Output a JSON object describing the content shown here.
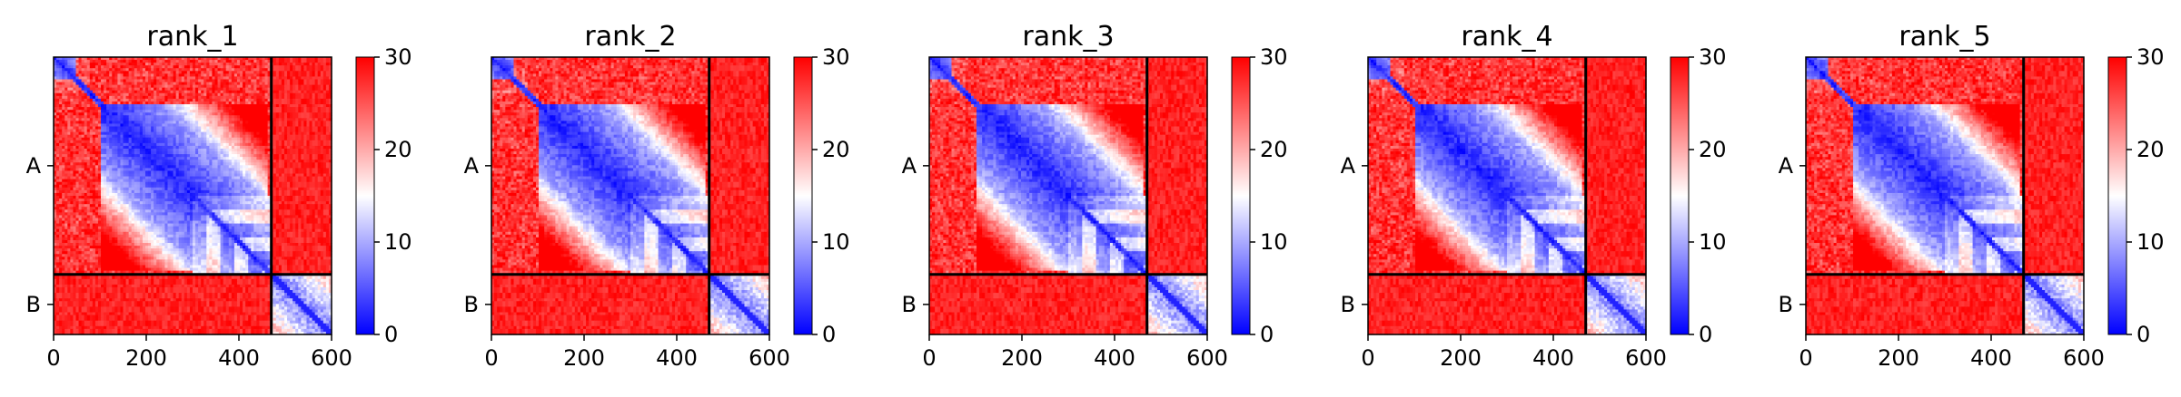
{
  "chart_data": [
    {
      "type": "heatmap",
      "title": "rank_1",
      "boundary": 470
    },
    {
      "type": "heatmap",
      "title": "rank_2",
      "boundary": 470
    },
    {
      "type": "heatmap",
      "title": "rank_3",
      "boundary": 470
    },
    {
      "type": "heatmap",
      "title": "rank_4",
      "boundary": 470
    },
    {
      "type": "heatmap",
      "title": "rank_5",
      "boundary": 470
    }
  ],
  "shared": {
    "total_length": 600,
    "x_ticks": [
      0,
      200,
      400,
      600
    ],
    "x_tick_labels": [
      "0",
      "200",
      "400",
      "600"
    ],
    "y_tick_labels": [
      "A",
      "B"
    ],
    "colorbar": {
      "vmin": 0,
      "vmax": 30,
      "ticks": [
        0,
        10,
        20,
        30
      ],
      "tick_labels": [
        "0",
        "10",
        "20",
        "30"
      ],
      "colormap": "bwr",
      "colors": {
        "low": "#0000ff",
        "mid": "#ffffff",
        "high": "#ff0000"
      }
    },
    "divider_color": "#000000"
  }
}
